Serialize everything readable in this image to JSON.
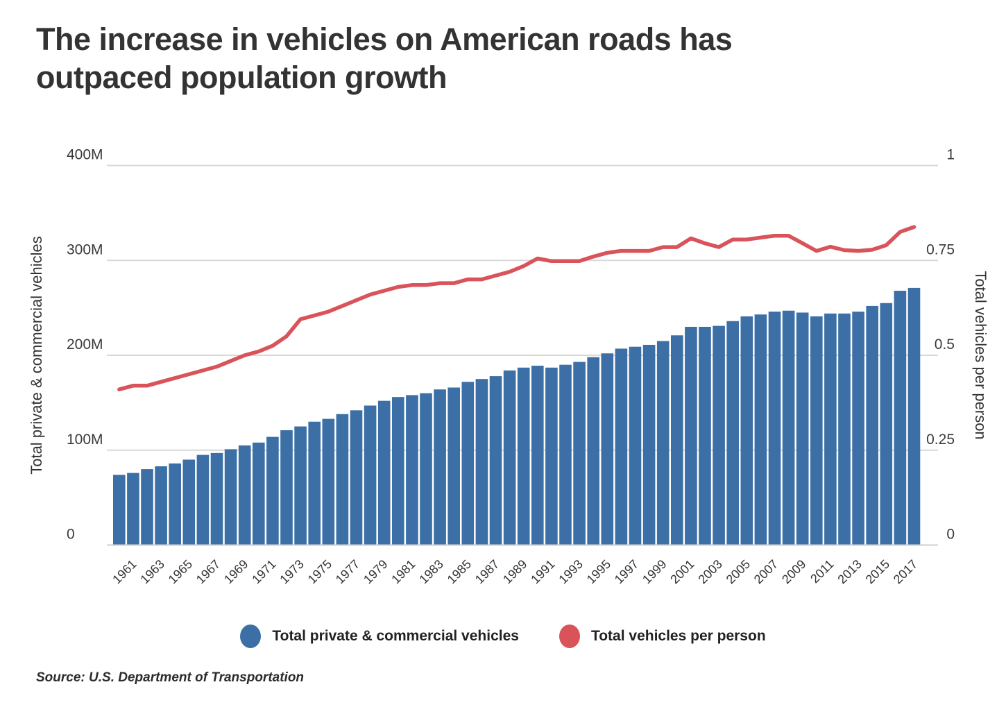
{
  "title": {
    "line1": "The increase in vehicles on American roads has",
    "line2": "outpaced population growth"
  },
  "source": "Source: U.S. Department of Transportation",
  "legend": [
    {
      "label": "Total private & commercial vehicles",
      "color": "#3C6FA6"
    },
    {
      "label": "Total vehicles per person",
      "color": "#D9535A"
    }
  ],
  "colors": {
    "bar": "#3C6FA6",
    "line": "#D9535A",
    "grid": "#d8d8d8",
    "baseline": "#cfcfcf",
    "text": "#333333"
  },
  "chart_data": {
    "type": "bar",
    "title": "The increase in vehicles on American roads has outpaced population growth",
    "grid": true,
    "legend_position": "bottom",
    "x": [
      1960,
      1961,
      1962,
      1963,
      1964,
      1965,
      1966,
      1967,
      1968,
      1969,
      1970,
      1971,
      1972,
      1973,
      1974,
      1975,
      1976,
      1977,
      1978,
      1979,
      1980,
      1981,
      1982,
      1983,
      1984,
      1985,
      1986,
      1987,
      1988,
      1989,
      1990,
      1991,
      1992,
      1993,
      1994,
      1995,
      1996,
      1997,
      1998,
      1999,
      2000,
      2001,
      2002,
      2003,
      2004,
      2005,
      2006,
      2007,
      2008,
      2009,
      2010,
      2011,
      2012,
      2013,
      2014,
      2015,
      2016,
      2017
    ],
    "series": [
      {
        "name": "Total private & commercial vehicles",
        "type": "bar",
        "axis": "left",
        "unit": "millions of vehicles",
        "color": "#3C6FA6",
        "values": [
          74,
          76,
          80,
          83,
          86,
          90,
          95,
          97,
          101,
          105,
          108,
          114,
          121,
          125,
          130,
          133,
          138,
          142,
          147,
          152,
          156,
          158,
          160,
          164,
          166,
          172,
          175,
          178,
          184,
          187,
          189,
          187,
          190,
          193,
          198,
          202,
          207,
          209,
          211,
          215,
          221,
          230,
          230,
          231,
          236,
          241,
          243,
          246,
          247,
          245,
          241,
          244,
          244,
          246,
          252,
          255,
          268,
          271
        ]
      },
      {
        "name": "Total vehicles per person",
        "type": "line",
        "axis": "right",
        "unit": "vehicles per person",
        "color": "#D9535A",
        "values": [
          0.41,
          0.42,
          0.42,
          0.43,
          0.44,
          0.45,
          0.46,
          0.47,
          0.485,
          0.5,
          0.51,
          0.525,
          0.55,
          0.595,
          0.605,
          0.615,
          0.63,
          0.645,
          0.66,
          0.67,
          0.68,
          0.685,
          0.685,
          0.69,
          0.69,
          0.7,
          0.7,
          0.71,
          0.72,
          0.735,
          0.755,
          0.748,
          0.748,
          0.748,
          0.76,
          0.77,
          0.775,
          0.775,
          0.775,
          0.785,
          0.785,
          0.808,
          0.795,
          0.785,
          0.805,
          0.805,
          0.81,
          0.815,
          0.815,
          0.795,
          0.775,
          0.786,
          0.777,
          0.775,
          0.778,
          0.79,
          0.825,
          0.838
        ]
      }
    ],
    "left_axis": {
      "title": "Total private & commercial vehicles",
      "ticks": [
        "0",
        "100M",
        "200M",
        "300M",
        "400M"
      ],
      "tick_values": [
        0,
        100,
        200,
        300,
        400
      ],
      "range_millions": [
        0,
        400
      ]
    },
    "right_axis": {
      "title": "Total vehicles per person",
      "ticks": [
        "0",
        "0.25",
        "0.5",
        "0.75",
        "1"
      ],
      "tick_values": [
        0,
        0.25,
        0.5,
        0.75,
        1
      ],
      "range": [
        0,
        1
      ]
    },
    "x_axis": {
      "tick_years": [
        1961,
        1963,
        1965,
        1967,
        1969,
        1971,
        1973,
        1975,
        1977,
        1979,
        1981,
        1983,
        1985,
        1987,
        1989,
        1991,
        1993,
        1995,
        1997,
        1999,
        2001,
        2003,
        2005,
        2007,
        2009,
        2011,
        2013,
        2015,
        2017
      ],
      "label_rotation_deg": -45
    }
  }
}
